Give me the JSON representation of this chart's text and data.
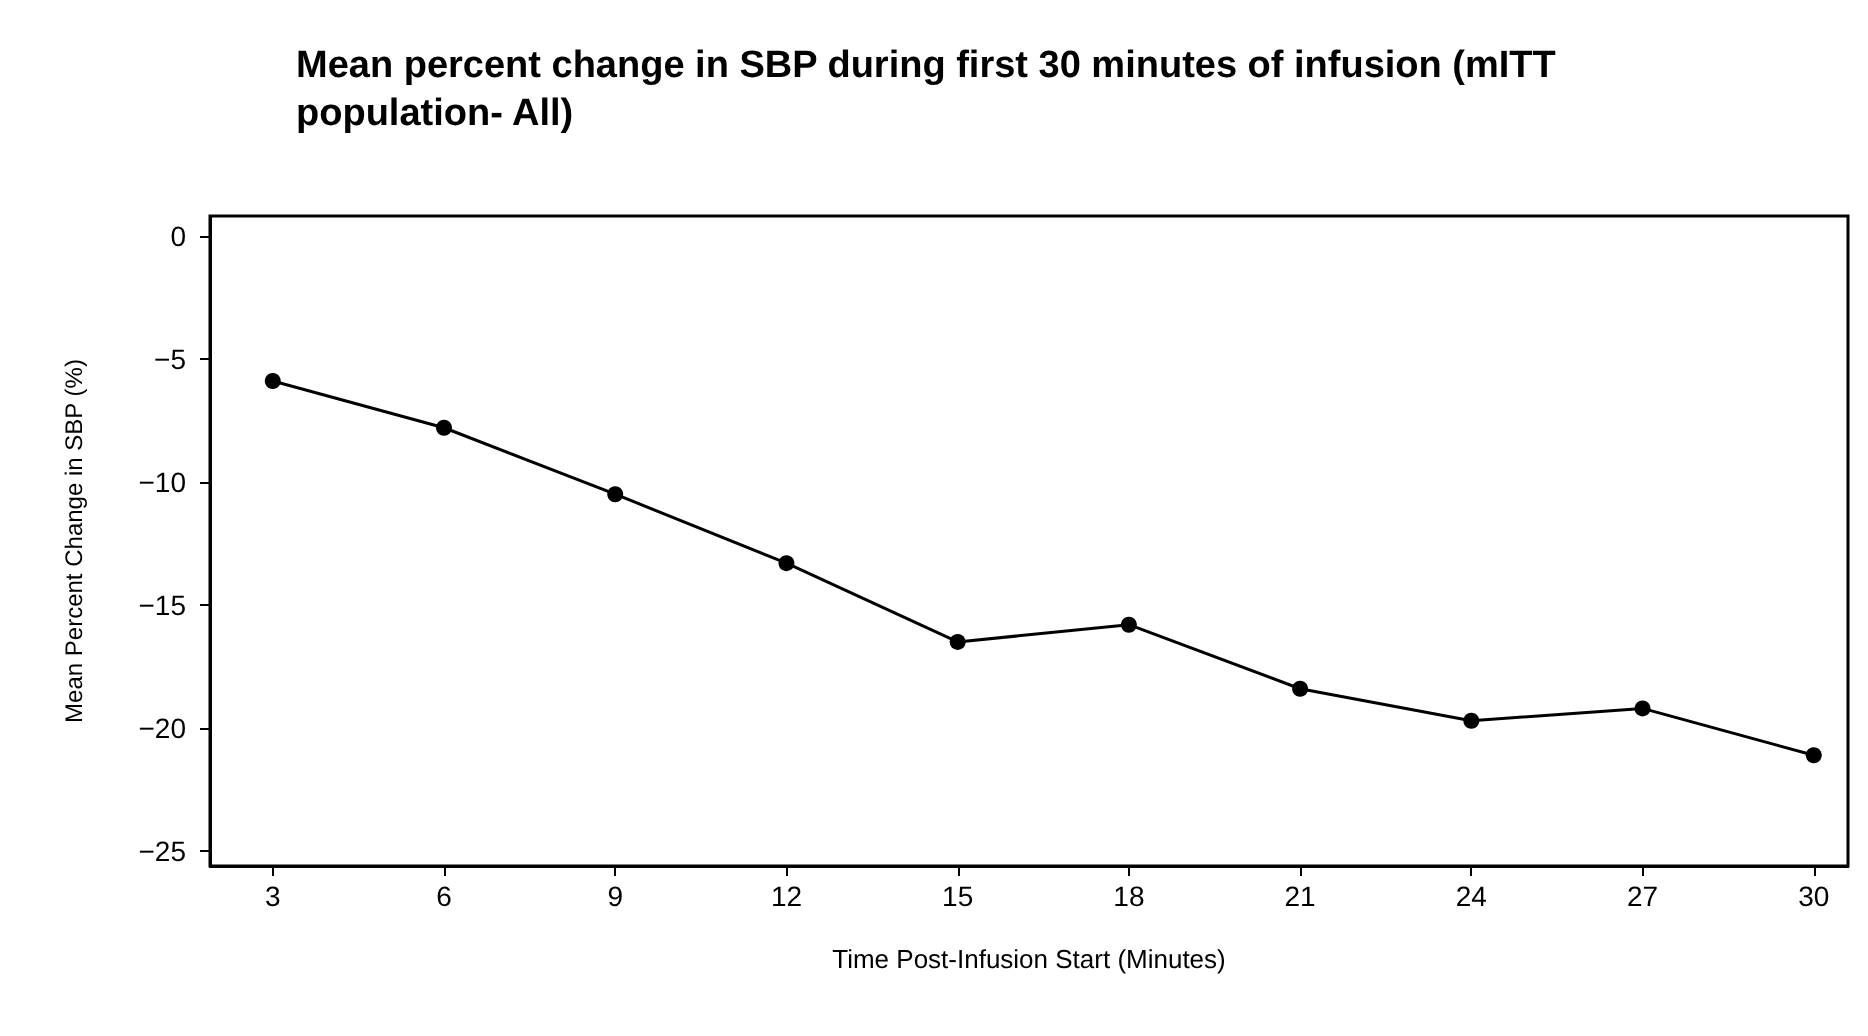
{
  "chart_data": {
    "type": "line",
    "title": "Mean percent change in SBP during first 30 minutes of infusion (mITT\npopulation- All)",
    "xlabel": "Time Post-Infusion Start (Minutes)",
    "ylabel": "Mean Percent Change in SBP (%)",
    "x": [
      3,
      6,
      9,
      12,
      15,
      18,
      21,
      24,
      27,
      30
    ],
    "series": [
      {
        "color": "#000000",
        "values": [
          -5.9,
          -7.8,
          -10.5,
          -13.3,
          -16.5,
          -15.8,
          -18.4,
          -19.7,
          -19.2,
          -21.1
        ]
      }
    ],
    "xlim": [
      1.9,
      30.6
    ],
    "xticks": [
      3,
      6,
      9,
      12,
      15,
      18,
      21,
      24,
      27,
      30
    ],
    "ylim": [
      -25.6,
      0.8
    ],
    "yticks": [
      0,
      -5,
      -10,
      -15,
      -20,
      -25
    ],
    "grid": false,
    "marker": "circle",
    "line_style": "solid"
  }
}
